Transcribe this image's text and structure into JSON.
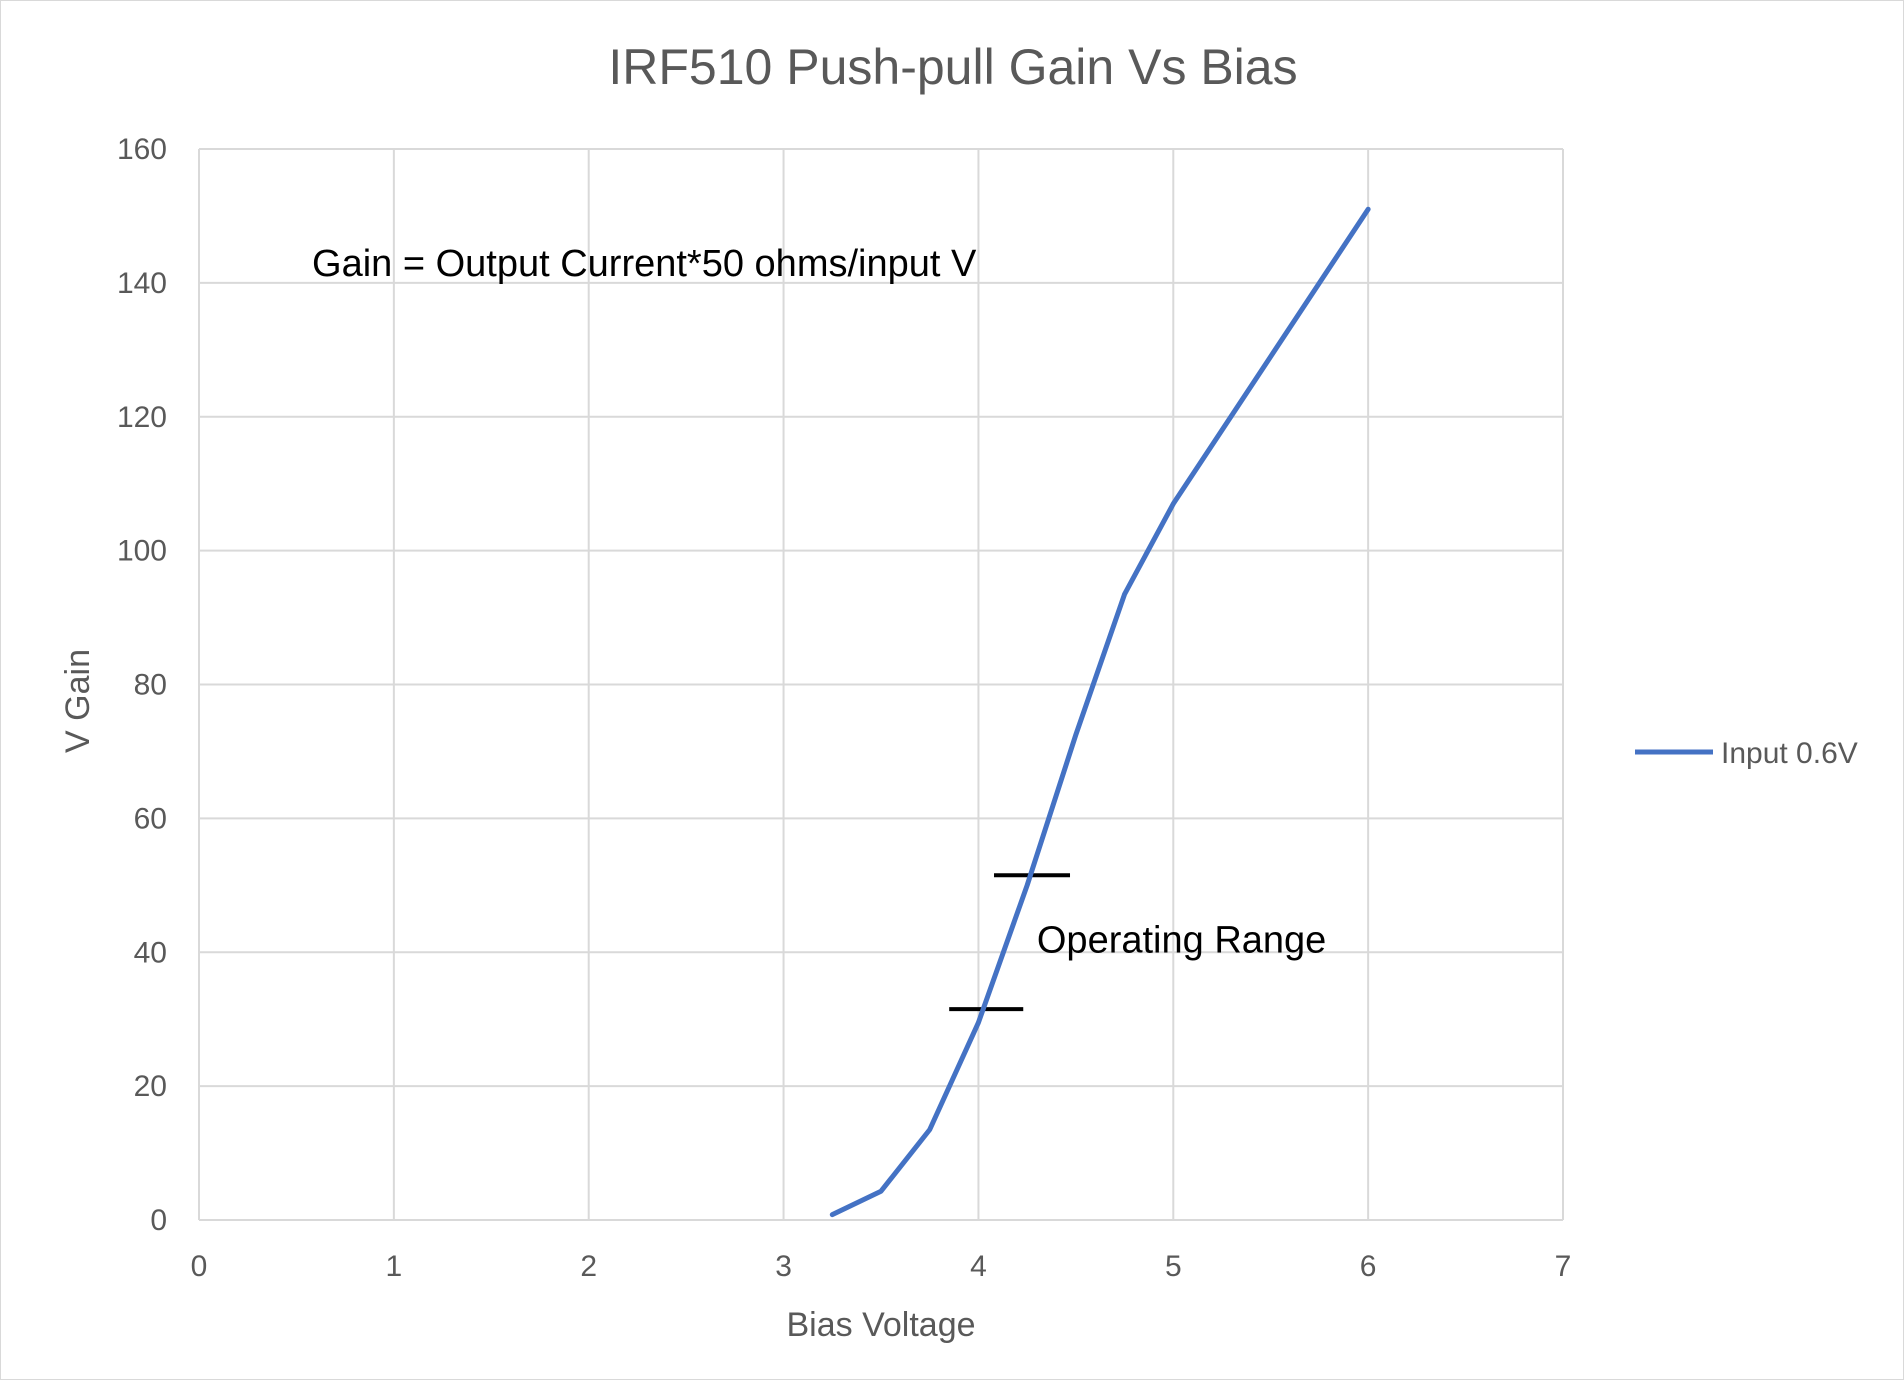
{
  "chart_data": {
    "type": "line",
    "title": "IRF510 Push-pull Gain Vs Bias",
    "xlabel": "Bias Voltage",
    "ylabel": "V Gain",
    "xlim": [
      0,
      7
    ],
    "ylim": [
      0,
      160
    ],
    "xticks": [
      "0",
      "1",
      "2",
      "3",
      "4",
      "5",
      "6",
      "7"
    ],
    "yticks": [
      "0",
      "20",
      "40",
      "60",
      "80",
      "100",
      "120",
      "140",
      "160"
    ],
    "grid": true,
    "legend_position": "right",
    "series": [
      {
        "name": "Input 0.6V",
        "color": "#4472C4",
        "x": [
          3.25,
          3.5,
          3.75,
          4.0,
          4.25,
          4.5,
          4.75,
          5.0,
          5.25,
          5.5,
          5.75,
          6.0
        ],
        "y": [
          0.8,
          4.3,
          13.5,
          29.5,
          50.0,
          72.5,
          93.5,
          107.0,
          118.0,
          129.0,
          140.0,
          151.0
        ]
      }
    ],
    "annotations": [
      {
        "text": "Gain = Output Current*50 ohms/input V",
        "x": 0.58,
        "y": 141
      },
      {
        "text": "Operating Range",
        "x": 4.3,
        "y": 40
      }
    ],
    "range_markers": [
      {
        "x_start": 3.85,
        "x_end": 4.23,
        "y": 31.5
      },
      {
        "x_start": 4.08,
        "x_end": 4.47,
        "y": 51.5
      }
    ]
  }
}
